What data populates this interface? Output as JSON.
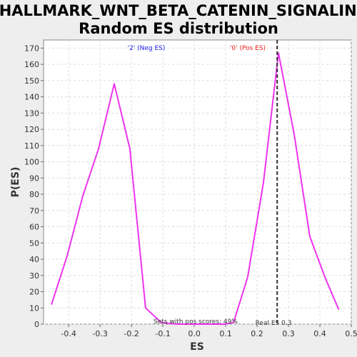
{
  "chart_data": {
    "type": "line",
    "title_line1": "HALLMARK_WNT_BETA_CATENIN_SIGNALING:",
    "title_line2": "Random ES distribution",
    "xlabel": "ES",
    "ylabel": "P(ES)",
    "xlim": [
      -0.48,
      0.5
    ],
    "ylim": [
      0,
      175
    ],
    "xticks": [
      "-0.4",
      "-0.3",
      "-0.2",
      "-0.1",
      "0.0",
      "0.1",
      "0.2",
      "0.3",
      "0.4",
      "0.5"
    ],
    "xtick_values": [
      -0.4,
      -0.3,
      -0.2,
      -0.1,
      0.0,
      0.1,
      0.2,
      0.3,
      0.4,
      0.5
    ],
    "yticks": [
      "0",
      "10",
      "20",
      "30",
      "40",
      "50",
      "60",
      "70",
      "80",
      "90",
      "100",
      "110",
      "120",
      "130",
      "140",
      "150",
      "160",
      "170"
    ],
    "ytick_values": [
      0,
      10,
      20,
      30,
      40,
      50,
      60,
      70,
      80,
      90,
      100,
      110,
      120,
      130,
      140,
      150,
      160,
      170
    ],
    "grid": true,
    "series": [
      {
        "color": "#ee33ee",
        "x": [
          -0.455,
          -0.405,
          -0.355,
          -0.305,
          -0.255,
          -0.205,
          -0.155,
          -0.105,
          -0.055,
          -0.005,
          0.045,
          0.095,
          0.125,
          0.17,
          0.22,
          0.268,
          0.318,
          0.368,
          0.418,
          0.46
        ],
        "y": [
          12,
          42,
          79,
          108,
          148,
          108,
          10,
          1,
          0,
          0,
          0,
          0,
          1,
          29,
          87,
          167,
          117,
          54,
          28,
          9
        ]
      }
    ],
    "real_es": 0.264,
    "annotations": {
      "neg_label": "'2' (Neg ES)",
      "pos_label": "'0' (Pos ES)",
      "pos_scores": "Sets with pos scores: 49%",
      "real_es": "Real ES 0.3"
    },
    "colors": {
      "neg_label": "#2222ee",
      "pos_label": "#ee2222",
      "line": "#ee33ee",
      "real_es_line": "#333333"
    }
  }
}
